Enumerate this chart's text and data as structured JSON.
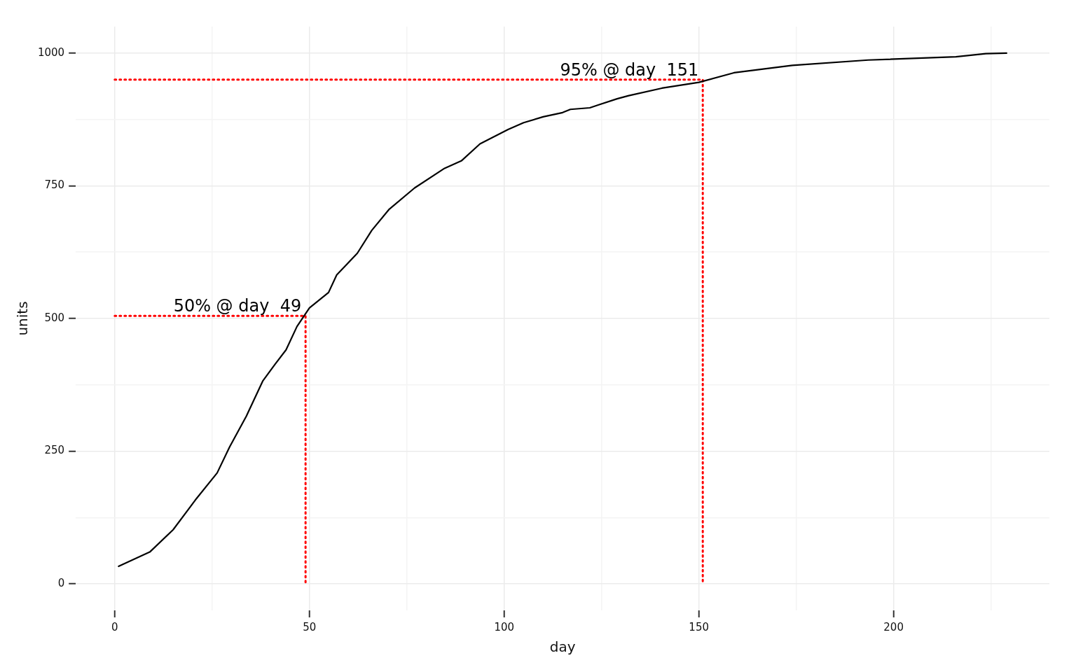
{
  "chart_data": {
    "type": "line",
    "xlabel": "day",
    "ylabel": "units",
    "xlim": [
      -10,
      240
    ],
    "ylim": [
      -50,
      1050
    ],
    "xticks": [
      0,
      {
        "value": 25,
        "label": null
      },
      50,
      {
        "value": 75,
        "label": null
      },
      100,
      {
        "value": 125,
        "label": null
      },
      150,
      {
        "value": 175,
        "label": null
      },
      200,
      {
        "value": 225,
        "label": null
      }
    ],
    "yticks": [
      0,
      {
        "value": 125,
        "label": null
      },
      250,
      {
        "value": 375,
        "label": null
      },
      500,
      {
        "value": 625,
        "label": null
      },
      750,
      {
        "value": 875,
        "label": null
      },
      1000
    ],
    "grid": true,
    "legend": false,
    "marker": "none",
    "series": [
      {
        "color": "#000000",
        "line_style": "solid",
        "x": [
          1,
          9,
          15,
          20.7,
          26.3,
          29.5,
          33.8,
          38,
          41.2,
          44,
          46.8,
          50,
          54.9,
          57,
          62.3,
          66,
          70.5,
          77,
          84.7,
          89,
          93.8,
          101,
          105,
          110,
          115,
          117,
          122,
          124,
          129,
          132,
          140.5,
          150,
          159,
          174,
          193.5,
          216,
          223.7,
          229
        ],
        "values": [
          33,
          60,
          102,
          158,
          209,
          258,
          316,
          382,
          414,
          441,
          485,
          520,
          549,
          582,
          623,
          666,
          706,
          746,
          783,
          797,
          829,
          856,
          869,
          880,
          888,
          894,
          897,
          902,
          914,
          920,
          934,
          945,
          963,
          977,
          987,
          993,
          999,
          1000
        ]
      },
      {
        "color": "#ff0000",
        "line_style": "dotted",
        "x": [
          0,
          49,
          49
        ],
        "values": [
          505,
          505,
          0
        ]
      },
      {
        "color": "#ff0000",
        "line_style": "dotted",
        "x": [
          0,
          151,
          151
        ],
        "values": [
          950,
          950,
          0
        ]
      }
    ],
    "annotations": [
      {
        "text": "50% @ day  49",
        "x": 49,
        "y": 500
      },
      {
        "text": "95% @ day  151",
        "x": 151,
        "y": 945
      }
    ]
  }
}
